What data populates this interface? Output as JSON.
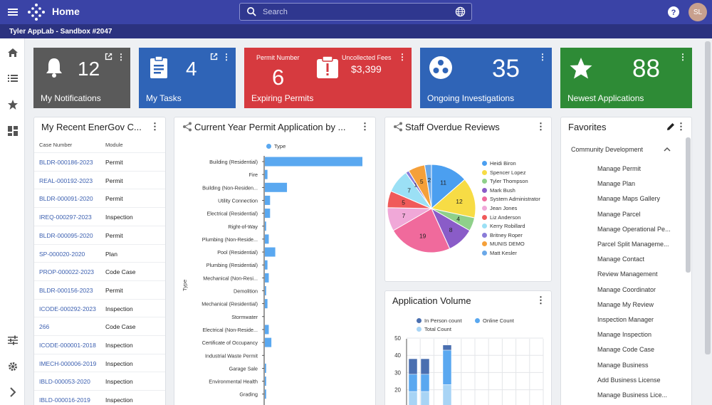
{
  "header": {
    "title": "Home",
    "search_placeholder": "Search",
    "avatar_initials": "SL"
  },
  "subheader": {
    "environment": "Tyler AppLab - Sandbox #2047"
  },
  "stat_cards": [
    {
      "label": "My Notifications",
      "value": "12",
      "color": "#5a5a5a",
      "icon": "bell-icon"
    },
    {
      "label": "My Tasks",
      "value": "4",
      "color": "#2f64b7",
      "icon": "clipboard-icon"
    },
    {
      "label": "Expiring Permits",
      "value": "6",
      "sub_label": "Permit Number",
      "fees_label": "Uncollected Fees",
      "fees_value": "$3,399",
      "color": "#d63a3f",
      "icon": "alert-icon"
    },
    {
      "label": "Ongoing Investigations",
      "value": "35",
      "color": "#2f64b7",
      "icon": "investigation-icon"
    },
    {
      "label": "Newest Applications",
      "value": "88",
      "color": "#2e8b36",
      "icon": "star-icon"
    }
  ],
  "recent": {
    "title": "My Recent EnerGov C...",
    "columns": [
      "Case Number",
      "Module"
    ],
    "rows": [
      [
        "BLDR-000186-2023",
        "Permit"
      ],
      [
        "REAL-000192-2023",
        "Permit"
      ],
      [
        "BLDR-000091-2020",
        "Permit"
      ],
      [
        "IREQ-000297-2023",
        "Inspection"
      ],
      [
        "BLDR-000095-2020",
        "Permit"
      ],
      [
        "SP-000020-2020",
        "Plan"
      ],
      [
        "PROP-000022-2023",
        "Code Case"
      ],
      [
        "BLDR-000156-2023",
        "Permit"
      ],
      [
        "ICODE-000292-2023",
        "Inspection"
      ],
      [
        "266",
        "Code Case"
      ],
      [
        "ICODE-000001-2018",
        "Inspection"
      ],
      [
        "IMECH-000006-2019",
        "Inspection"
      ],
      [
        "IBLD-000053-2020",
        "Inspection"
      ],
      [
        "IBLD-000016-2019",
        "Inspection"
      ]
    ]
  },
  "permit_chart": {
    "title": "Current Year Permit Application by ...",
    "legend": "Type",
    "ylabel": "Type"
  },
  "overdue": {
    "title": "Staff Overdue Reviews"
  },
  "volume": {
    "title": "Application Volume",
    "legend": [
      "In Person count",
      "Online Count",
      "Total Count"
    ]
  },
  "favorites": {
    "title": "Favorites",
    "group": "Community Development",
    "items": [
      "Manage Permit",
      "Manage Plan",
      "Manage Maps Gallery",
      "Manage Parcel",
      "Manage Operational Pe...",
      "Parcel Split Manageme...",
      "Manage Contact",
      "Review Management",
      "Manage Coordinator",
      "Manage My Review",
      "Inspection Manager",
      "Manage Inspection",
      "Manage Code Case",
      "Manage Business",
      "Add Business License",
      "Manage Business Lice..."
    ]
  },
  "chart_data": [
    {
      "type": "bar",
      "orientation": "horizontal",
      "categories": [
        "Building (Residential)",
        "Fire",
        "Building (Non-Residen...",
        "Utility Connection",
        "Electrical (Residential)",
        "Right-of-Way",
        "Plumbing (Non-Reside...",
        "Pool (Residential)",
        "Plumbing (Residential)",
        "Mechanical (Non-Resi...",
        "Demolition",
        "Mechanical (Residential)",
        "Stormwater",
        "Electrical (Non-Reside...",
        "Certificate of Occupancy",
        "Industrial Waste Permit",
        "Garage Sale",
        "Environmental Health",
        "Grading"
      ],
      "values": [
        75,
        2,
        17,
        4,
        4,
        1,
        3,
        8,
        2,
        3,
        1,
        2,
        0,
        3,
        5,
        0,
        1,
        1,
        1
      ],
      "legend": [
        "Type"
      ],
      "ylabel": "Type",
      "color": "#5aa8f0"
    },
    {
      "type": "pie",
      "labels": [
        "Heidi Biron",
        "Spencer Lopez",
        "Tyler Thompson",
        "Mark Bush",
        "System Administrator",
        "Jean Jones",
        "Liz Anderson",
        "Kerry Robillard",
        "Britney Roper",
        "MUNIS DEMO",
        "Matt Kesler"
      ],
      "values": [
        11,
        12,
        4,
        8,
        19,
        7,
        5,
        7,
        1,
        5,
        2
      ],
      "colors": [
        "#4b9ff0",
        "#f7dc45",
        "#8fd08a",
        "#8a5cc8",
        "#f06a9c",
        "#f0a8d8",
        "#f05a5a",
        "#9be0f5",
        "#8a7cd8",
        "#f5a03a",
        "#6aa8e8"
      ]
    },
    {
      "type": "bar",
      "stacked": true,
      "series": [
        {
          "name": "In Person count",
          "values": [
            9,
            9,
            0,
            3
          ]
        },
        {
          "name": "Online Count",
          "values": [
            10,
            10,
            1,
            20
          ]
        },
        {
          "name": "Total Count",
          "values": [
            19,
            19,
            1,
            23
          ]
        }
      ],
      "ylim": [
        0,
        50
      ],
      "yticks": [
        20,
        30,
        40,
        50
      ]
    }
  ]
}
